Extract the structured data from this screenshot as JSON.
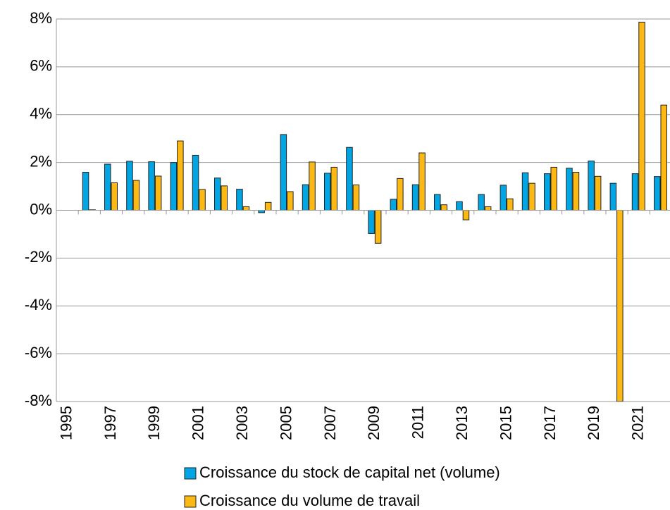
{
  "chart_data": {
    "type": "bar",
    "categories": [
      "1995",
      null,
      "1997",
      null,
      "1999",
      null,
      "2001",
      null,
      "2003",
      null,
      "2005",
      null,
      "2007",
      null,
      "2009",
      null,
      "2011",
      null,
      "2013",
      null,
      "2015",
      null,
      "2017",
      null,
      "2019",
      null,
      "2021",
      null
    ],
    "series": [
      {
        "name": "Croissance du stock de capital net (volume)",
        "color": "#00a6e4",
        "values": [
          null,
          1.59,
          1.93,
          2.05,
          2.03,
          2.0,
          2.3,
          1.35,
          0.88,
          -0.1,
          3.17,
          1.07,
          1.55,
          2.63,
          -0.97,
          0.46,
          1.07,
          0.66,
          0.36,
          0.66,
          1.05,
          1.57,
          1.53,
          1.76,
          2.06,
          1.13,
          1.53,
          1.41
        ]
      },
      {
        "name": "Croissance du volume de travail",
        "color": "#fdb913",
        "values": [
          null,
          0.02,
          1.15,
          1.25,
          1.43,
          2.9,
          0.87,
          1.02,
          0.15,
          0.33,
          0.78,
          2.02,
          1.8,
          1.06,
          -1.38,
          1.33,
          2.4,
          0.23,
          -0.4,
          0.15,
          0.48,
          1.13,
          1.8,
          1.59,
          1.42,
          -8,
          7.87,
          4.4
        ]
      }
    ],
    "ylim": [
      -8,
      8
    ],
    "yticks": [
      {
        "value": -8,
        "label": "-8%"
      },
      {
        "value": -6,
        "label": "-6%"
      },
      {
        "value": -4,
        "label": "-4%"
      },
      {
        "value": -2,
        "label": "-2%"
      },
      {
        "value": 0,
        "label": "0%"
      },
      {
        "value": 2,
        "label": "2%"
      },
      {
        "value": 4,
        "label": "4%"
      },
      {
        "value": 6,
        "label": "6%"
      },
      {
        "value": 8,
        "label": "8%"
      }
    ],
    "grid": true
  }
}
